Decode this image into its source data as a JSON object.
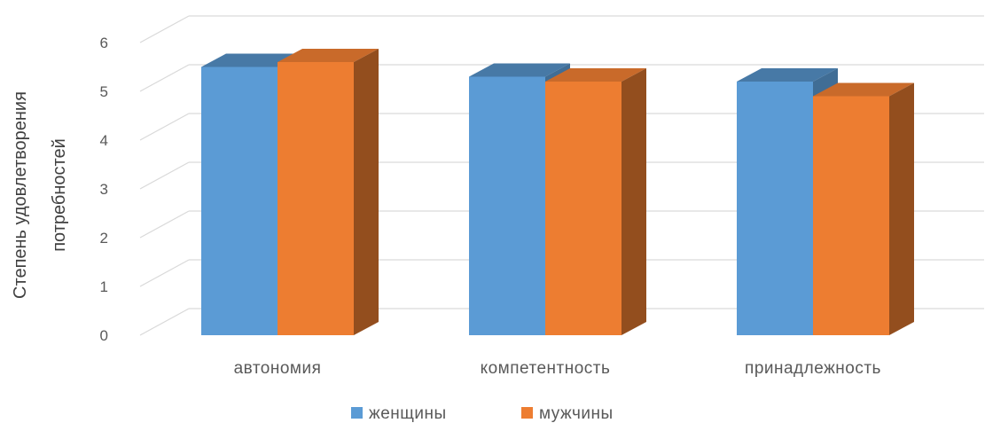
{
  "chart_data": {
    "type": "bar",
    "style": "3d-clustered-column",
    "categories": [
      "автономия",
      "компетентность",
      "принадлежность"
    ],
    "series": [
      {
        "name": "женщины",
        "color": "#5B9BD5",
        "values": [
          5.5,
          5.3,
          5.2
        ]
      },
      {
        "name": "мужчины",
        "color": "#ED7D31",
        "values": [
          5.6,
          5.2,
          4.9
        ]
      }
    ],
    "ylabel_lines": [
      "Степень удовлетворения",
      "потребностей"
    ],
    "xlabel": "",
    "ylim": [
      0,
      6
    ],
    "yticks": [
      "0",
      "1",
      "2",
      "3",
      "4",
      "5",
      "6"
    ],
    "grid": true,
    "legend_position": "bottom"
  }
}
